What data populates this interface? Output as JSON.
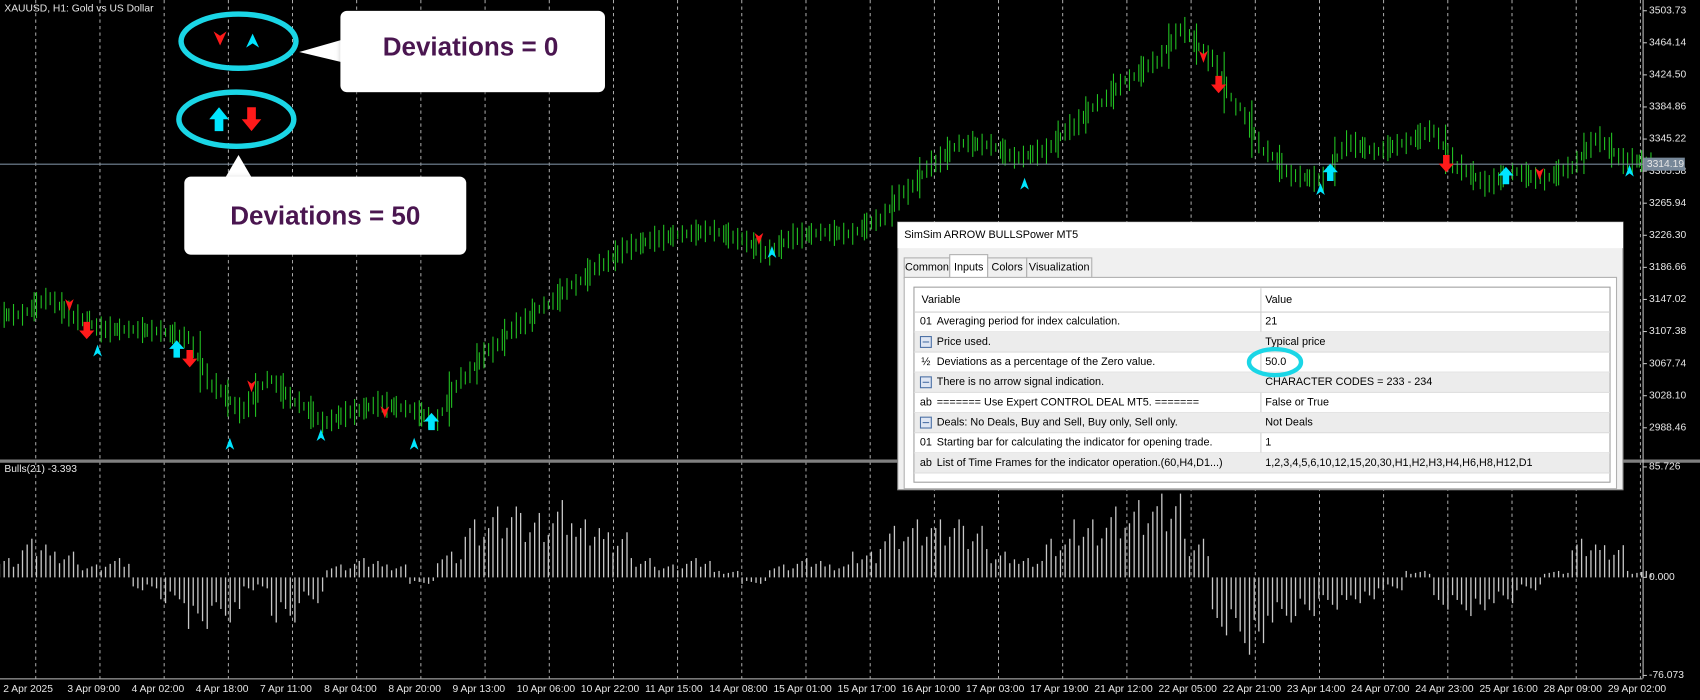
{
  "window": {
    "title": "XAUUSD, H1:  Gold vs US Dollar"
  },
  "price_chart": {
    "closes": [
      3128,
      3148,
      3125,
      3110,
      3110,
      3108,
      3100,
      3040,
      3010,
      3048,
      3020,
      2995,
      3008,
      3018,
      3012,
      2998,
      3050,
      3085,
      3115,
      3140,
      3165,
      3190,
      3212,
      3222,
      3228,
      3232,
      3222,
      3205,
      3225,
      3230,
      3228,
      3245,
      3280,
      3315,
      3340,
      3338,
      3322,
      3330,
      3360,
      3390,
      3418,
      3440,
      3480,
      3445,
      3385,
      3330,
      3300,
      3295,
      3340,
      3330,
      3340,
      3355,
      3310,
      3290,
      3305,
      3295,
      3310,
      3345,
      3318,
      3318
    ],
    "ylim": [
      2948,
      3517
    ],
    "yticks": [
      3503.73,
      3464.14,
      {
        "value": 3424.5,
        "label": "3424.50"
      },
      3384.86,
      3345.22,
      3305.58,
      3265.94,
      {
        "value": 3226.3,
        "label": "3226.30"
      },
      3186.66,
      3147.02,
      3107.38,
      3067.74,
      {
        "value": 3028.1,
        "label": "3028.10"
      },
      2988.46
    ],
    "current_price": 3314.19,
    "time_labels": [
      "2 Apr 2025",
      "3 Apr 09:00",
      "4 Apr 02:00",
      "4 Apr 18:00",
      "7 Apr 11:00",
      "8 Apr 04:00",
      "8 Apr 20:00",
      "9 Apr 13:00",
      "10 Apr 06:00",
      "10 Apr 22:00",
      "11 Apr 15:00",
      "14 Apr 08:00",
      "15 Apr 01:00",
      "15 Apr 17:00",
      "16 Apr 10:00",
      "17 Apr 03:00",
      "17 Apr 19:00",
      "21 Apr 12:00",
      "22 Apr 05:00",
      "22 Apr 21:00",
      "23 Apr 14:00",
      "24 Apr 07:00",
      "24 Apr 23:00",
      "25 Apr 16:00",
      "28 Apr 09:00",
      "29 Apr 02:00"
    ]
  },
  "indicator": {
    "label": "Bulls(21) -3.393",
    "values": [
      15,
      30,
      20,
      10,
      15,
      -10,
      -20,
      -40,
      -35,
      -10,
      -35,
      -20,
      10,
      15,
      10,
      -5,
      20,
      45,
      55,
      50,
      60,
      45,
      35,
      15,
      10,
      15,
      5,
      -5,
      10,
      15,
      10,
      20,
      40,
      45,
      45,
      40,
      20,
      15,
      30,
      45,
      55,
      60,
      65,
      30,
      -45,
      -60,
      -35,
      -30,
      -25,
      -20,
      -10,
      5,
      -25,
      -30,
      -20,
      -10,
      5,
      30,
      25,
      5
    ],
    "ylim": [
      -80,
      89
    ],
    "yticks": [
      85.726,
      {
        "value": 0,
        "label": "0.000"
      },
      -76.073
    ]
  },
  "callouts": [
    {
      "text": "Deviations = 0"
    },
    {
      "text": "Deviations = 50"
    }
  ],
  "dialog": {
    "title": "SimSim ARROW BULLSPower MT5",
    "tabs": [
      "Common",
      "Inputs",
      "Colors",
      "Visualization"
    ],
    "columns": [
      "Variable",
      "Value"
    ],
    "rows": [
      {
        "icon": "01",
        "variable": "Averaging period for index calculation.",
        "value": "21"
      },
      {
        "variable": "Price used.",
        "value": "Typical price"
      },
      {
        "icon": "½",
        "variable": "Deviations as a percentage of the Zero value.",
        "value": "50.0"
      },
      {
        "variable": "There is no arrow signal indication.",
        "value": "CHARACTER CODES = 233 - 234"
      },
      {
        "icon": "ab",
        "variable": "=======     Use Expert CONTROL DEAL MT5.     =======",
        "value": "False or True"
      },
      {
        "variable": "Deals: No Deals, Buy and Sell, Buy only, Sell only.",
        "value": "Not Deals"
      },
      {
        "icon": "01",
        "variable": "Starting bar for calculating the indicator for opening trade.",
        "value": "1"
      },
      {
        "icon": "ab",
        "variable": "List of Time Frames for the indicator operation.(60,H4,D1...)",
        "value": "1,2,3,4,5,6,10,12,15,20,30,H1,H2,H3,H4,H6,H8,H12,D1"
      }
    ]
  }
}
